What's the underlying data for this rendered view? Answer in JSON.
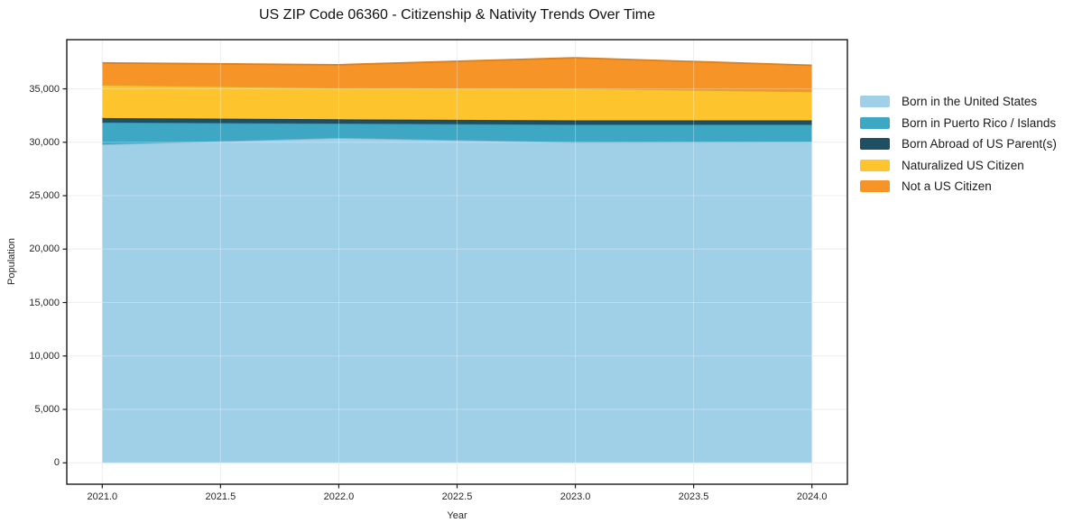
{
  "chart_data": {
    "type": "area",
    "stacked": true,
    "title": "US ZIP Code 06360 - Citizenship & Nativity Trends Over Time",
    "xlabel": "Year",
    "ylabel": "Population",
    "x": [
      2021,
      2022,
      2023,
      2024
    ],
    "series": [
      {
        "name": "Born in the United States",
        "color": "#a0d0e8",
        "values": [
          29800,
          30400,
          30000,
          30050
        ]
      },
      {
        "name": "Born in Puerto Rico / Islands",
        "color": "#3ea8c4",
        "values": [
          2050,
          1350,
          1650,
          1600
        ]
      },
      {
        "name": "Born Abroad of US Parent(s)",
        "color": "#1f4f63",
        "values": [
          420,
          400,
          400,
          400
        ]
      },
      {
        "name": "Naturalized US Citizen",
        "color": "#fdc42e",
        "values": [
          3100,
          2950,
          3000,
          2700
        ]
      },
      {
        "name": "Not a US Citizen",
        "color": "#f79428",
        "values": [
          2050,
          2150,
          2850,
          2450
        ]
      }
    ],
    "xlim": [
      2020.85,
      2024.15
    ],
    "ylim": [
      -2000,
      39600
    ],
    "xticks": {
      "values": [
        2021.0,
        2021.5,
        2022.0,
        2022.5,
        2023.0,
        2023.5,
        2024.0
      ],
      "labels": [
        "2021.0",
        "2021.5",
        "2022.0",
        "2022.5",
        "2023.0",
        "2023.5",
        "2024.0"
      ]
    },
    "yticks": {
      "values": [
        0,
        5000,
        10000,
        15000,
        20000,
        25000,
        30000,
        35000
      ],
      "labels": [
        "0",
        "5,000",
        "10,000",
        "15,000",
        "20,000",
        "25,000",
        "30,000",
        "35,000"
      ]
    },
    "grid": true,
    "legend_position": "right",
    "colors": {
      "spine": "#1a1a1a",
      "gridline": "#e7e7e7",
      "background": "#ffffff"
    }
  }
}
